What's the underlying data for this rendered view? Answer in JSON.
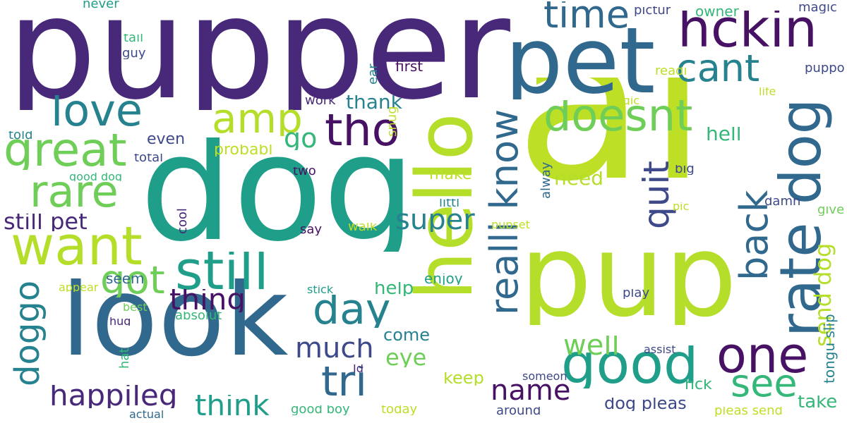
{
  "palette": {
    "deep_purple": "#482878",
    "purple": "#471164",
    "indigo": "#3e4989",
    "blue": "#31688e",
    "teal": "#26828e",
    "green_teal": "#1f9e89",
    "green": "#35b779",
    "light_green": "#6ece58",
    "yellow_green": "#b5de2b",
    "lime": "#bddf26"
  },
  "words": [
    {
      "text": "pupper",
      "c": "deep_purple"
    },
    {
      "text": "af",
      "c": "lime"
    },
    {
      "text": "dog",
      "c": "green_teal"
    },
    {
      "text": "pup",
      "c": "yellow_green"
    },
    {
      "text": "look",
      "c": "blue"
    },
    {
      "text": "pet",
      "c": "blue"
    },
    {
      "text": "hello",
      "c": "yellow_green"
    },
    {
      "text": "hckin",
      "c": "purple"
    },
    {
      "text": "tho",
      "c": "purple"
    },
    {
      "text": "good",
      "c": "green_teal"
    },
    {
      "text": "rate dog",
      "c": "blue"
    },
    {
      "text": "one",
      "c": "purple"
    },
    {
      "text": "love",
      "c": "teal"
    },
    {
      "text": "want",
      "c": "yellow_green"
    },
    {
      "text": "great",
      "c": "light_green"
    },
    {
      "text": "still",
      "c": "green_teal"
    },
    {
      "text": "doesnt",
      "c": "light_green"
    },
    {
      "text": "realli know",
      "c": "blue"
    },
    {
      "text": "rare",
      "c": "light_green"
    },
    {
      "text": "amp",
      "c": "yellow_green"
    },
    {
      "text": "time",
      "c": "blue"
    },
    {
      "text": "cant",
      "c": "teal"
    },
    {
      "text": "day",
      "c": "teal"
    },
    {
      "text": "tri",
      "c": "blue"
    },
    {
      "text": "quit",
      "c": "indigo"
    },
    {
      "text": "back",
      "c": "blue"
    },
    {
      "text": "see",
      "c": "green"
    },
    {
      "text": "got",
      "c": "light_green"
    },
    {
      "text": "doggo",
      "c": "teal"
    },
    {
      "text": "think",
      "c": "green_teal"
    },
    {
      "text": "happileg",
      "c": "deep_purple"
    },
    {
      "text": "thing",
      "c": "purple"
    },
    {
      "text": "super",
      "c": "teal"
    },
    {
      "text": "much",
      "c": "indigo"
    },
    {
      "text": "go",
      "c": "green"
    },
    {
      "text": "well",
      "c": "light_green"
    },
    {
      "text": "name",
      "c": "purple"
    },
    {
      "text": "still pet",
      "c": "deep_purple"
    },
    {
      "text": "send dog",
      "c": "yellow_green"
    },
    {
      "text": "eye",
      "c": "light_green"
    },
    {
      "text": "help",
      "c": "green"
    },
    {
      "text": "hell",
      "c": "green"
    },
    {
      "text": "thank",
      "c": "teal"
    },
    {
      "text": "need",
      "c": "yellow_green"
    },
    {
      "text": "take",
      "c": "green"
    },
    {
      "text": "dog pleas",
      "c": "indigo"
    },
    {
      "text": "come",
      "c": "teal"
    },
    {
      "text": "keep",
      "c": "yellow_green"
    },
    {
      "text": "hck",
      "c": "green"
    },
    {
      "text": "tongu slip",
      "c": "teal"
    },
    {
      "text": "seem",
      "c": "blue"
    },
    {
      "text": "even",
      "c": "indigo"
    },
    {
      "text": "probabl",
      "c": "lime"
    },
    {
      "text": "make",
      "c": "lime"
    },
    {
      "text": "enjoy",
      "c": "green_teal"
    },
    {
      "text": "owner",
      "c": "green"
    },
    {
      "text": "pictur",
      "c": "indigo"
    },
    {
      "text": "magic",
      "c": "indigo"
    },
    {
      "text": "puppo",
      "c": "indigo"
    },
    {
      "text": "readi",
      "c": "lime"
    },
    {
      "text": "snug",
      "c": "lime"
    },
    {
      "text": "tragic",
      "c": "lime"
    },
    {
      "text": "life",
      "c": "lime"
    },
    {
      "text": "ear",
      "c": "teal"
    },
    {
      "text": "first",
      "c": "purple"
    },
    {
      "text": "work",
      "c": "deep_purple"
    },
    {
      "text": "never",
      "c": "green_teal"
    },
    {
      "text": "tail",
      "c": "green"
    },
    {
      "text": "guy",
      "c": "indigo"
    },
    {
      "text": "told",
      "c": "teal"
    },
    {
      "text": "total",
      "c": "indigo"
    },
    {
      "text": "good dog",
      "c": "green"
    },
    {
      "text": "two",
      "c": "purple"
    },
    {
      "text": "big",
      "c": "indigo"
    },
    {
      "text": "alway",
      "c": "blue"
    },
    {
      "text": "littl",
      "c": "teal"
    },
    {
      "text": "damn",
      "c": "indigo"
    },
    {
      "text": "give",
      "c": "light_green"
    },
    {
      "text": "pic",
      "c": "lime"
    },
    {
      "text": "cool",
      "c": "deep_purple"
    },
    {
      "text": "say",
      "c": "purple"
    },
    {
      "text": "walk",
      "c": "lime"
    },
    {
      "text": "pupset",
      "c": "lime"
    },
    {
      "text": "appear",
      "c": "lime"
    },
    {
      "text": "stick",
      "c": "green_teal"
    },
    {
      "text": "best",
      "c": "light_green"
    },
    {
      "text": "absolut",
      "c": "green"
    },
    {
      "text": "hug",
      "c": "deep_purple"
    },
    {
      "text": "hat",
      "c": "green"
    },
    {
      "text": "play",
      "c": "indigo"
    },
    {
      "text": "assist",
      "c": "indigo"
    },
    {
      "text": "Id",
      "c": "deep_purple"
    },
    {
      "text": "someon",
      "c": "indigo"
    },
    {
      "text": "good boy",
      "c": "green"
    },
    {
      "text": "today",
      "c": "lime"
    },
    {
      "text": "actual",
      "c": "blue"
    },
    {
      "text": "around",
      "c": "indigo"
    },
    {
      "text": "pleas send",
      "c": "lime"
    }
  ]
}
